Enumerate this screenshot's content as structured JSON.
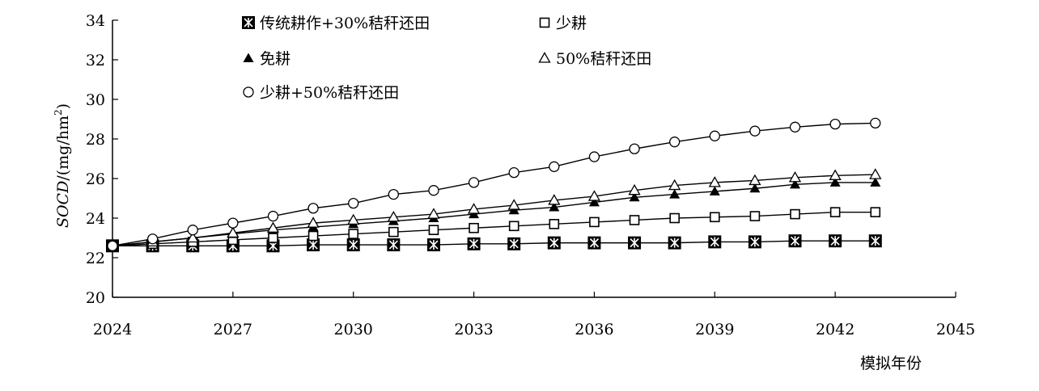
{
  "chart_data": {
    "type": "line",
    "title": "",
    "xlabel": "模拟年份",
    "ylabel_prefix": "SOCD",
    "ylabel_suffix": "/(mg/hm",
    "ylabel_sup": "2",
    "ylabel_close": ")",
    "xlim": [
      2024,
      2045
    ],
    "ylim": [
      20,
      34
    ],
    "x_ticks": [
      2024,
      2027,
      2030,
      2033,
      2036,
      2039,
      2042,
      2045
    ],
    "y_ticks": [
      20,
      22,
      24,
      26,
      28,
      30,
      32,
      34
    ],
    "x_tick_labels": [
      "2024",
      "2027",
      "2030",
      "2033",
      "2036",
      "2039",
      "2042",
      "2045"
    ],
    "y_tick_labels": [
      "20",
      "22",
      "24",
      "26",
      "28",
      "30",
      "32",
      "34"
    ],
    "legend_position": "top",
    "x": [
      2024,
      2025,
      2026,
      2027,
      2028,
      2029,
      2030,
      2031,
      2032,
      2033,
      2034,
      2035,
      2036,
      2037,
      2038,
      2039,
      2040,
      2041,
      2042,
      2043
    ],
    "series": [
      {
        "name": "传统耕作+30%秸秆还田",
        "marker": "boxed-star",
        "values": [
          22.6,
          22.6,
          22.6,
          22.6,
          22.6,
          22.65,
          22.65,
          22.65,
          22.65,
          22.7,
          22.7,
          22.75,
          22.75,
          22.75,
          22.75,
          22.8,
          22.8,
          22.85,
          22.85,
          22.85
        ]
      },
      {
        "name": "少耕",
        "marker": "open-square",
        "values": [
          22.6,
          22.7,
          22.8,
          22.9,
          23.0,
          23.1,
          23.2,
          23.3,
          23.4,
          23.5,
          23.6,
          23.7,
          23.8,
          23.9,
          24.0,
          24.05,
          24.1,
          24.2,
          24.3,
          24.3
        ]
      },
      {
        "name": "免耕",
        "marker": "filled-triangle",
        "values": [
          22.6,
          22.8,
          23.0,
          23.2,
          23.4,
          23.55,
          23.7,
          23.85,
          24.0,
          24.2,
          24.4,
          24.55,
          24.8,
          25.05,
          25.2,
          25.35,
          25.5,
          25.7,
          25.8,
          25.8
        ]
      },
      {
        "name": "50%秸秆还田",
        "marker": "open-triangle",
        "values": [
          22.6,
          22.8,
          23.0,
          23.25,
          23.5,
          23.75,
          23.9,
          24.05,
          24.2,
          24.45,
          24.65,
          24.9,
          25.1,
          25.4,
          25.65,
          25.8,
          25.9,
          26.05,
          26.15,
          26.2
        ]
      },
      {
        "name": "少耕+50%秸秆还田",
        "marker": "open-circle",
        "values": [
          22.6,
          22.95,
          23.4,
          23.75,
          24.1,
          24.5,
          24.75,
          25.2,
          25.4,
          25.8,
          26.3,
          26.6,
          27.1,
          27.5,
          27.85,
          28.15,
          28.4,
          28.6,
          28.75,
          28.8
        ]
      }
    ]
  }
}
